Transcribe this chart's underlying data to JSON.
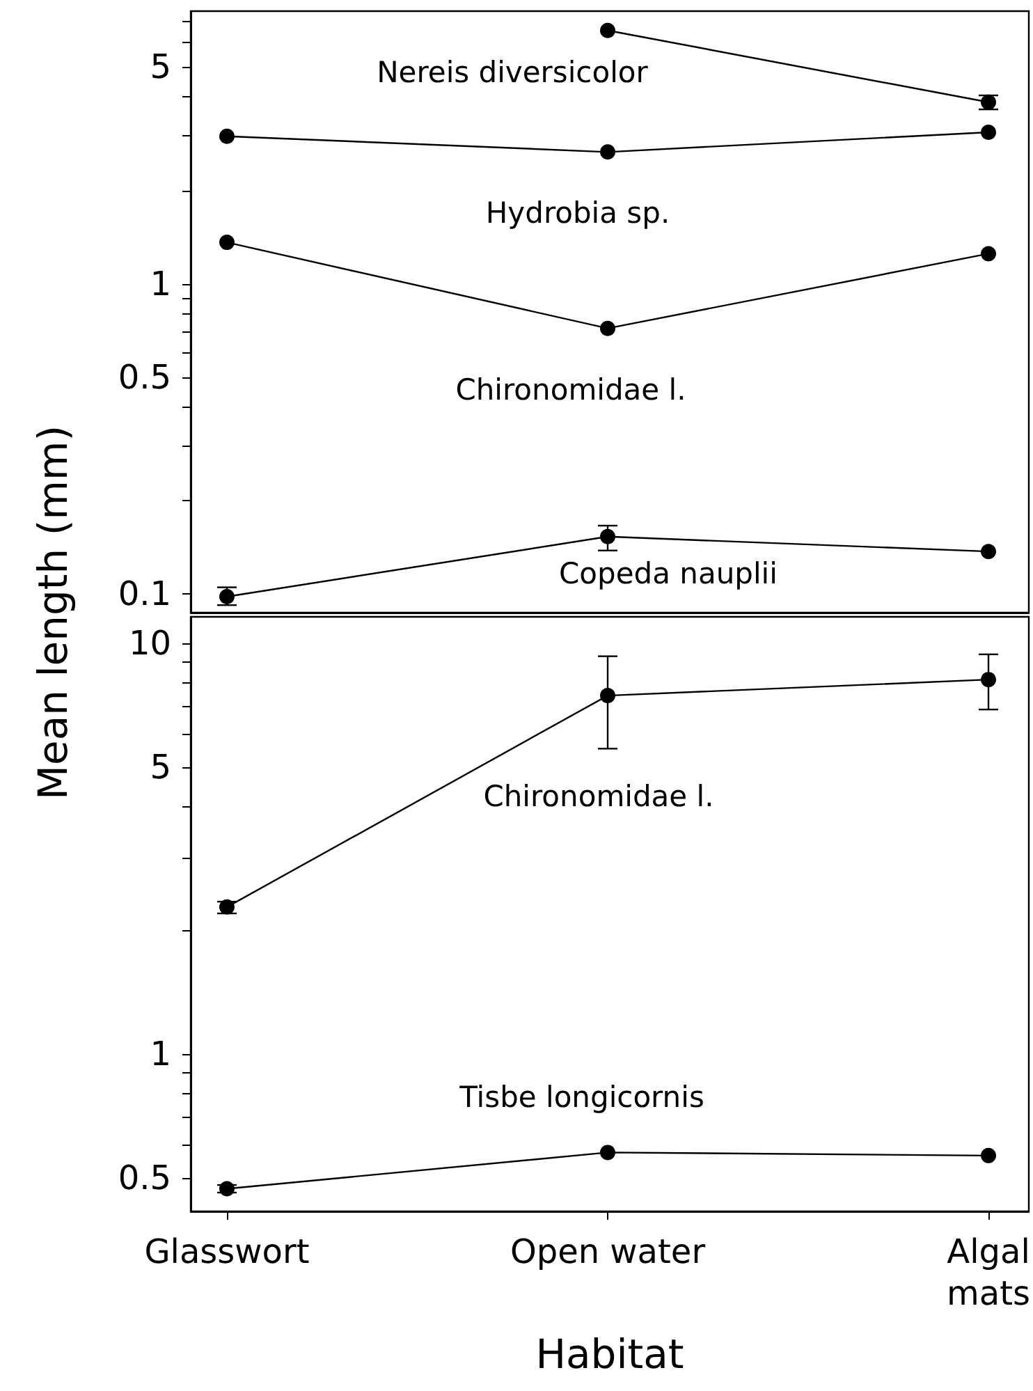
{
  "chart_data": [
    {
      "type": "line",
      "categories": [
        null,
        null,
        null
      ],
      "ylabel": "Mean length (mm)",
      "log": "y",
      "ylim": [
        0.087,
        7.57
      ],
      "yticks": [
        0.1,
        {
          "value": 0.2,
          "label": null
        },
        {
          "value": 0.3,
          "label": null
        },
        {
          "value": 0.4,
          "label": null
        },
        0.5,
        {
          "value": 0.6,
          "label": null
        },
        {
          "value": 0.7,
          "label": null
        },
        {
          "value": 0.8,
          "label": null
        },
        {
          "value": 0.9,
          "label": null
        },
        1,
        {
          "value": 2,
          "label": null
        },
        {
          "value": 3,
          "label": null
        },
        {
          "value": 4,
          "label": null
        },
        5,
        {
          "value": 6,
          "label": null
        },
        {
          "value": 7,
          "label": null
        }
      ],
      "tick_labels": "y",
      "marker": "circle",
      "line_style": "solid",
      "series": [
        {
          "color": "#000000",
          "values": [
            null,
            6.56,
            3.85
          ],
          "errors": [
            null,
            null,
            0.2
          ]
        },
        {
          "color": "#000000",
          "values": [
            2.99,
            2.66,
            3.08
          ]
        },
        {
          "color": "#000000",
          "values": [
            1.36,
            0.718,
            1.25
          ]
        },
        {
          "color": "#000000",
          "values": [
            0.098,
            0.153,
            0.137
          ],
          "errors": [
            [
              0.092,
              0.105
            ],
            [
              0.138,
              0.166
            ],
            null
          ]
        }
      ],
      "annotations": [
        "Nereis diversicolor",
        "Hydrobia sp.",
        "Chironomidae l.",
        "Copeda nauplii"
      ]
    },
    {
      "type": "line",
      "categories": [
        "Glasswort",
        "Open water",
        "Algal mats"
      ],
      "xlabel": "Habitat",
      "log": "y",
      "ylim": [
        0.414,
        11.6
      ],
      "yticks": [
        0.5,
        {
          "value": 0.6,
          "label": null
        },
        {
          "value": 0.7,
          "label": null
        },
        {
          "value": 0.8,
          "label": null
        },
        {
          "value": 0.9,
          "label": null
        },
        1,
        {
          "value": 2,
          "label": null
        },
        {
          "value": 3,
          "label": null
        },
        {
          "value": 4,
          "label": null
        },
        5,
        {
          "value": 6,
          "label": null
        },
        {
          "value": 7,
          "label": null
        },
        {
          "value": 8,
          "label": null
        },
        {
          "value": 9,
          "label": null
        },
        10
      ],
      "marker": "circle",
      "line_style": "solid",
      "series": [
        {
          "color": "#000000",
          "values": [
            2.28,
            7.46,
            8.16
          ],
          "errors": [
            [
              2.2,
              2.35
            ],
            [
              5.54,
              9.3
            ],
            [
              6.9,
              9.4
            ]
          ]
        },
        {
          "color": "#000000",
          "values": [
            0.47,
            0.576,
            0.566
          ],
          "errors": [
            [
              0.46,
              0.48
            ],
            null,
            null
          ]
        }
      ],
      "annotations": [
        "Chironomidae l.",
        "Tisbe longicornis"
      ]
    }
  ]
}
